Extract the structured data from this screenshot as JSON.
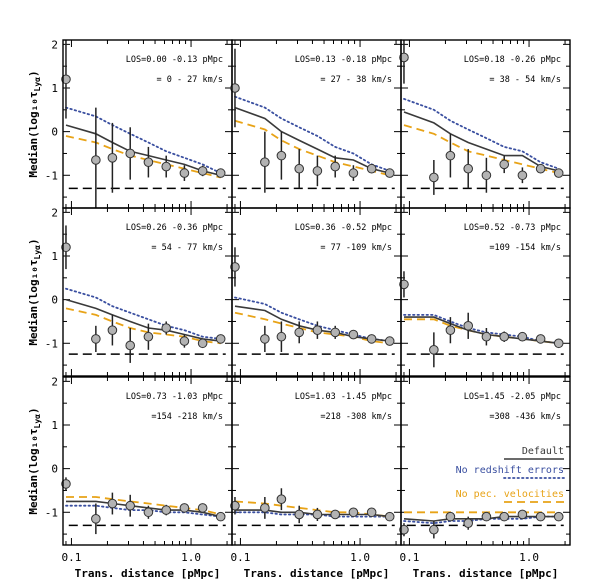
{
  "chart_data": {
    "type": "line",
    "layout": "3x3 grid of panels, shared axes",
    "xlabel": "Trans. distance [pMpc]",
    "ylabel": "Median(log₁₀τ",
    "ylabel_sub": "Lyα",
    "ylabel_close": ")",
    "x_scale": "log",
    "xlim": [
      0.085,
      2.2
    ],
    "ylim": [
      -1.75,
      2.1
    ],
    "x_ticks": [
      {
        "value": 0.1,
        "label": "0.1"
      },
      {
        "value": 1.0,
        "label": "1.0"
      }
    ],
    "y_ticks": [
      {
        "value": 2,
        "label": "2"
      },
      {
        "value": 1,
        "label": "1"
      },
      {
        "value": 0,
        "label": "0"
      },
      {
        "value": -1,
        "label": "-1"
      }
    ],
    "x_points": [
      0.09,
      0.16,
      0.22,
      0.31,
      0.44,
      0.62,
      0.88,
      1.25,
      1.77
    ],
    "legend": {
      "placement": "lower-right panel, right side",
      "entries": [
        {
          "label": "Default",
          "color": "#3a3a3a",
          "style": "solid"
        },
        {
          "label": "No redshift errors",
          "color": "#3a4fa0",
          "style": "dotted"
        },
        {
          "label": "No pec. velocities",
          "color": "#e8a317",
          "style": "dashed"
        }
      ]
    },
    "reference_line": {
      "style": "dashed",
      "color": "#000000"
    },
    "panels": [
      {
        "los_text": "LOS=0.00 -0.13 pMpc",
        "vel_text": "= 0 - 27 km/s",
        "ref": -1.3,
        "points": [
          1.2,
          -0.65,
          -0.6,
          -0.5,
          -0.7,
          -0.8,
          -0.95,
          -0.9,
          -0.95
        ],
        "errors": [
          0.9,
          1.2,
          0.8,
          0.6,
          0.35,
          0.25,
          0.18,
          0.12,
          0.1
        ],
        "default": [
          0.15,
          -0.05,
          -0.25,
          -0.45,
          -0.55,
          -0.65,
          -0.75,
          -0.9,
          -1.0
        ],
        "no_redshift_errors": [
          0.55,
          0.35,
          0.15,
          -0.05,
          -0.25,
          -0.45,
          -0.6,
          -0.75,
          -0.95
        ],
        "no_pec_velocities": [
          -0.1,
          -0.25,
          -0.4,
          -0.55,
          -0.65,
          -0.75,
          -0.85,
          -0.95,
          -1.05
        ]
      },
      {
        "los_text": "LOS=0.13 -0.18 pMpc",
        "vel_text": "= 27 - 38 km/s",
        "ref": -1.3,
        "points": [
          1.0,
          -0.7,
          -0.55,
          -0.85,
          -0.9,
          -0.8,
          -0.95,
          -0.85,
          -0.95
        ],
        "errors": [
          0.9,
          0.7,
          0.55,
          0.45,
          0.35,
          0.25,
          0.18,
          0.1,
          0.08
        ],
        "default": [
          0.55,
          0.3,
          0.0,
          -0.2,
          -0.4,
          -0.6,
          -0.65,
          -0.85,
          -0.95
        ],
        "no_redshift_errors": [
          0.8,
          0.55,
          0.3,
          0.1,
          -0.1,
          -0.35,
          -0.5,
          -0.75,
          -0.9
        ],
        "no_pec_velocities": [
          0.25,
          0.05,
          -0.2,
          -0.4,
          -0.55,
          -0.7,
          -0.8,
          -0.9,
          -1.0
        ]
      },
      {
        "los_text": "LOS=0.18 -0.26 pMpc",
        "vel_text": "= 38 - 54 km/s",
        "ref": -1.3,
        "points": [
          1.7,
          -1.05,
          -0.55,
          -0.85,
          -1.0,
          -0.75,
          -1.0,
          -0.85,
          -0.95
        ],
        "errors": [
          0.6,
          0.4,
          0.5,
          0.45,
          0.4,
          0.2,
          0.18,
          0.1,
          0.08
        ],
        "default": [
          0.45,
          0.2,
          -0.05,
          -0.25,
          -0.4,
          -0.55,
          -0.55,
          -0.8,
          -0.9
        ],
        "no_redshift_errors": [
          0.75,
          0.5,
          0.25,
          0.05,
          -0.15,
          -0.35,
          -0.45,
          -0.7,
          -0.85
        ],
        "no_pec_velocities": [
          0.15,
          -0.05,
          -0.25,
          -0.45,
          -0.55,
          -0.65,
          -0.75,
          -0.85,
          -0.95
        ]
      },
      {
        "los_text": "LOS=0.26 -0.36 pMpc",
        "vel_text": "= 54 - 77 km/s",
        "ref": -1.25,
        "points": [
          1.2,
          -0.9,
          -0.7,
          -1.05,
          -0.85,
          -0.65,
          -0.95,
          -1.0,
          -0.9
        ],
        "errors": [
          0.5,
          0.3,
          0.35,
          0.4,
          0.3,
          0.15,
          0.15,
          0.1,
          0.08
        ],
        "default": [
          0.0,
          -0.2,
          -0.35,
          -0.5,
          -0.65,
          -0.7,
          -0.8,
          -0.9,
          -0.95
        ],
        "no_redshift_errors": [
          0.25,
          0.05,
          -0.15,
          -0.3,
          -0.45,
          -0.6,
          -0.7,
          -0.85,
          -0.9
        ],
        "no_pec_velocities": [
          -0.2,
          -0.35,
          -0.5,
          -0.65,
          -0.75,
          -0.8,
          -0.85,
          -0.95,
          -1.0
        ]
      },
      {
        "los_text": "LOS=0.36 -0.52 pMpc",
        "vel_text": "= 77 -109 km/s",
        "ref": -1.25,
        "points": [
          0.75,
          -0.9,
          -0.85,
          -0.75,
          -0.7,
          -0.75,
          -0.8,
          -0.9,
          -0.95
        ],
        "errors": [
          0.45,
          0.3,
          0.35,
          0.25,
          0.2,
          0.15,
          0.1,
          0.08,
          0.06
        ],
        "default": [
          -0.15,
          -0.25,
          -0.45,
          -0.6,
          -0.7,
          -0.75,
          -0.85,
          -0.9,
          -0.95
        ],
        "no_redshift_errors": [
          0.05,
          -0.1,
          -0.3,
          -0.45,
          -0.6,
          -0.7,
          -0.8,
          -0.9,
          -0.95
        ],
        "no_pec_velocities": [
          -0.3,
          -0.45,
          -0.55,
          -0.65,
          -0.75,
          -0.8,
          -0.85,
          -0.95,
          -1.0
        ]
      },
      {
        "los_text": "LOS=0.52 -0.73 pMpc",
        "vel_text": "=109 -154 km/s",
        "ref": -1.25,
        "points": [
          0.35,
          -1.15,
          -0.7,
          -0.6,
          -0.85,
          -0.85,
          -0.85,
          -0.9,
          -1.0
        ],
        "errors": [
          0.3,
          0.4,
          0.3,
          0.3,
          0.2,
          0.12,
          0.1,
          0.08,
          0.06
        ],
        "default": [
          -0.4,
          -0.4,
          -0.55,
          -0.7,
          -0.8,
          -0.85,
          -0.9,
          -0.95,
          -1.0
        ],
        "no_redshift_errors": [
          -0.35,
          -0.35,
          -0.5,
          -0.65,
          -0.75,
          -0.8,
          -0.85,
          -0.95,
          -1.0
        ],
        "no_pec_velocities": [
          -0.45,
          -0.45,
          -0.6,
          -0.7,
          -0.8,
          -0.85,
          -0.9,
          -0.95,
          -1.0
        ]
      },
      {
        "los_text": "LOS=0.73 -1.03 pMpc",
        "vel_text": "=154 -218 km/s",
        "ref": -1.3,
        "points": [
          -0.35,
          -1.15,
          -0.8,
          -0.85,
          -1.0,
          -0.95,
          -0.9,
          -0.9,
          -1.1
        ],
        "errors": [
          0.15,
          0.35,
          0.25,
          0.25,
          0.15,
          0.12,
          0.1,
          0.08,
          0.06
        ],
        "default": [
          -0.75,
          -0.75,
          -0.8,
          -0.85,
          -0.9,
          -0.95,
          -0.95,
          -1.0,
          -1.1
        ],
        "no_redshift_errors": [
          -0.85,
          -0.85,
          -0.9,
          -0.95,
          -0.95,
          -1.0,
          -1.0,
          -1.05,
          -1.1
        ],
        "no_pec_velocities": [
          -0.65,
          -0.65,
          -0.7,
          -0.75,
          -0.8,
          -0.85,
          -0.9,
          -0.95,
          -1.05
        ]
      },
      {
        "los_text": "LOS=1.03 -1.45 pMpc",
        "vel_text": "=218 -308 km/s",
        "ref": -1.3,
        "points": [
          -0.85,
          -0.9,
          -0.7,
          -1.05,
          -1.05,
          -1.05,
          -1.0,
          -1.0,
          -1.1
        ],
        "errors": [
          0.2,
          0.25,
          0.25,
          0.2,
          0.15,
          0.1,
          0.08,
          0.06,
          0.05
        ],
        "default": [
          -0.95,
          -0.95,
          -1.0,
          -1.0,
          -1.05,
          -1.05,
          -1.05,
          -1.05,
          -1.1
        ],
        "no_redshift_errors": [
          -1.0,
          -1.0,
          -1.05,
          -1.05,
          -1.05,
          -1.1,
          -1.1,
          -1.1,
          -1.1
        ],
        "no_pec_velocities": [
          -0.75,
          -0.8,
          -0.85,
          -0.9,
          -0.95,
          -1.0,
          -1.0,
          -1.05,
          -1.1
        ]
      },
      {
        "los_text": "LOS=1.45 -2.05 pMpc",
        "vel_text": "=308 -436 km/s",
        "ref": -1.3,
        "points": [
          -1.4,
          -1.4,
          -1.1,
          -1.25,
          -1.1,
          -1.1,
          -1.05,
          -1.1,
          -1.1
        ],
        "errors": [
          0.15,
          0.2,
          0.1,
          0.15,
          0.1,
          0.08,
          0.06,
          0.05,
          0.05
        ],
        "default": [
          -1.15,
          -1.2,
          -1.15,
          -1.15,
          -1.15,
          -1.1,
          -1.1,
          -1.1,
          -1.1
        ],
        "no_redshift_errors": [
          -1.2,
          -1.25,
          -1.2,
          -1.2,
          -1.15,
          -1.15,
          -1.15,
          -1.1,
          -1.1
        ],
        "no_pec_velocities": [
          -1.0,
          -1.0,
          -1.0,
          -1.0,
          -1.0,
          -1.0,
          -1.0,
          -1.0,
          -1.0
        ]
      }
    ]
  },
  "colors": {
    "default": "#3a3a3a",
    "no_redshift_errors": "#3a4fa0",
    "no_pec_velocities": "#e8a317",
    "marker_fill": "#b3b3b3",
    "errorbar": "#222222"
  }
}
